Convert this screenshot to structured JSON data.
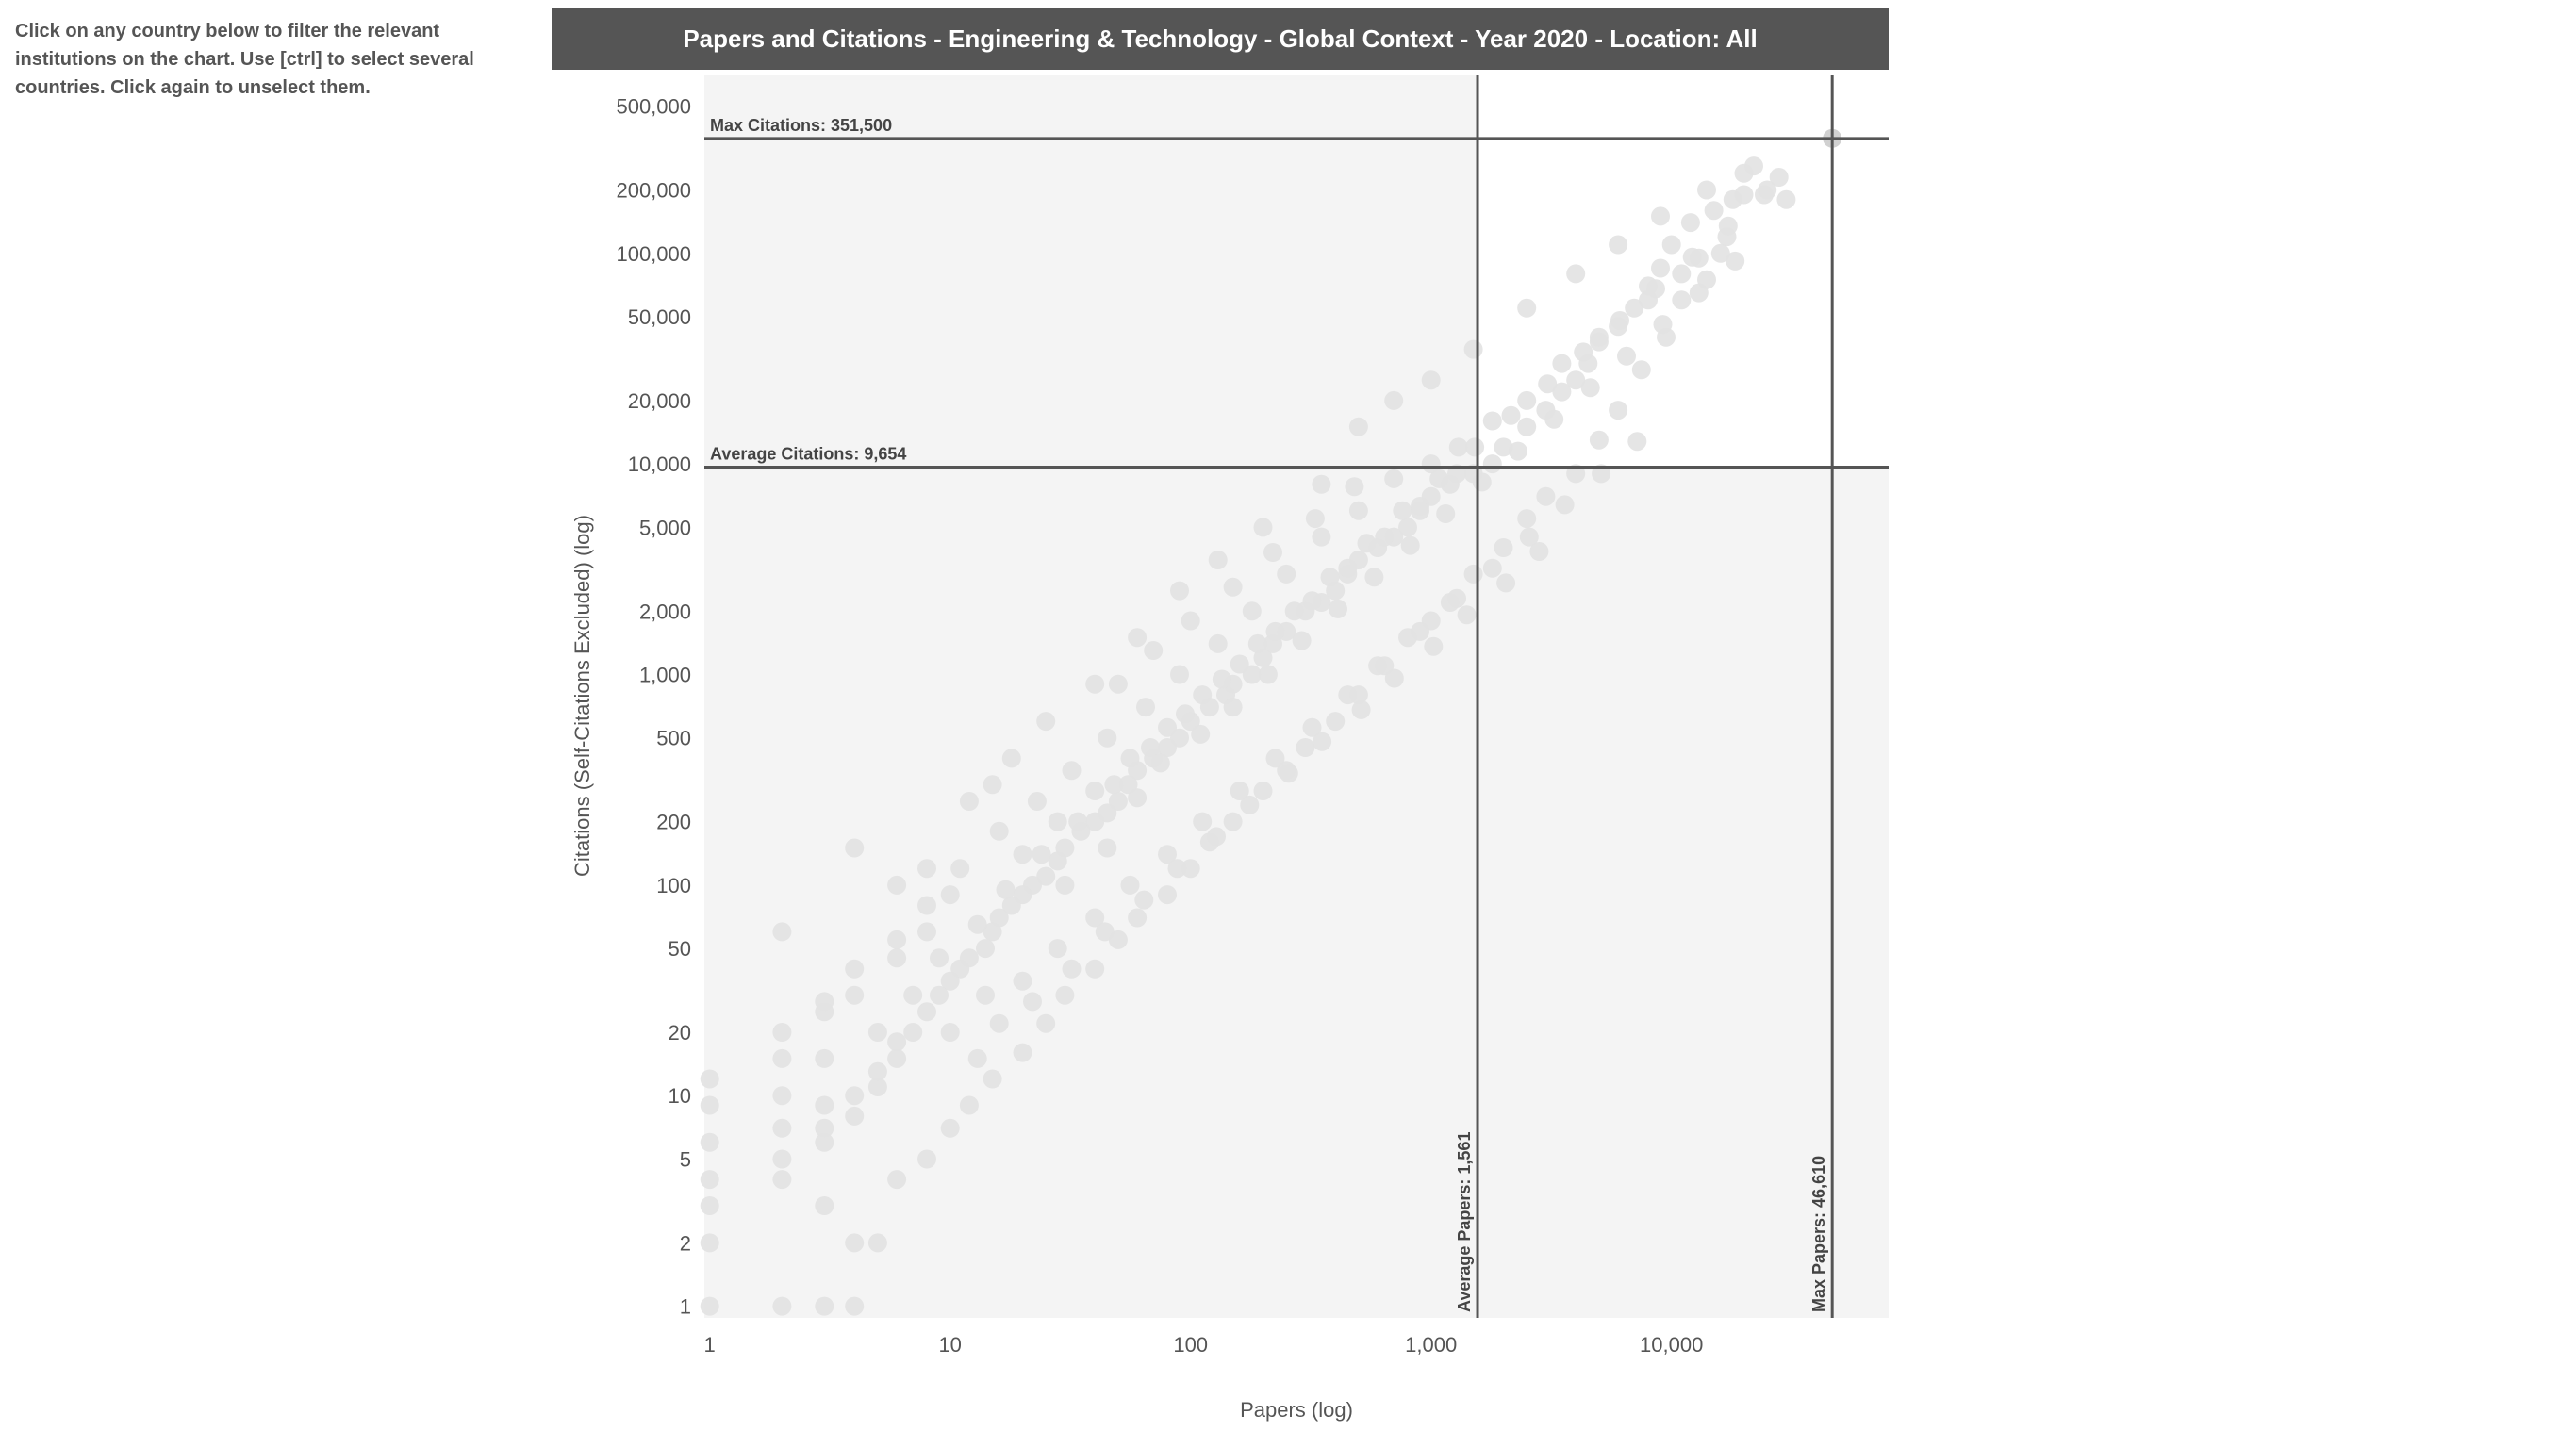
{
  "instructions": "Click on any country below to filter the relevant institutions on the chart. Use [ctrl] to select several countries. Click again to unselect them.",
  "chart_data": {
    "type": "scatter",
    "title": "Papers and Citations - Engineering & Technology - Global Context - Year 2020 - Location: All",
    "xlabel": "Papers (log)",
    "ylabel": "Citations (Self-Citations Excluded) (log)",
    "x_scale": "log",
    "y_scale": "log",
    "xlim": [
      0.95,
      80000
    ],
    "ylim": [
      0.88,
      700000
    ],
    "x_ticks": [
      {
        "value": 1,
        "label": "1"
      },
      {
        "value": 10,
        "label": "10"
      },
      {
        "value": 100,
        "label": "100"
      },
      {
        "value": 1000,
        "label": "1,000"
      },
      {
        "value": 10000,
        "label": "10,000"
      }
    ],
    "y_ticks": [
      {
        "value": 1,
        "label": "1"
      },
      {
        "value": 2,
        "label": "2"
      },
      {
        "value": 5,
        "label": "5"
      },
      {
        "value": 10,
        "label": "10"
      },
      {
        "value": 20,
        "label": "20"
      },
      {
        "value": 50,
        "label": "50"
      },
      {
        "value": 100,
        "label": "100"
      },
      {
        "value": 200,
        "label": "200"
      },
      {
        "value": 500,
        "label": "500"
      },
      {
        "value": 1000,
        "label": "1,000"
      },
      {
        "value": 2000,
        "label": "2,000"
      },
      {
        "value": 5000,
        "label": "5,000"
      },
      {
        "value": 10000,
        "label": "10,000"
      },
      {
        "value": 20000,
        "label": "20,000"
      },
      {
        "value": 50000,
        "label": "50,000"
      },
      {
        "value": 100000,
        "label": "100,000"
      },
      {
        "value": 200000,
        "label": "200,000"
      },
      {
        "value": 500000,
        "label": "500,000"
      }
    ],
    "reference_lines": [
      {
        "axis": "y",
        "value": 351500,
        "label": "Max Citations: 351,500"
      },
      {
        "axis": "y",
        "value": 9654,
        "label": "Average Citations: 9,654"
      },
      {
        "axis": "x",
        "value": 1561,
        "label": "Average Papers: 1,561"
      },
      {
        "axis": "x",
        "value": 46610,
        "label": "Max Papers: 46,610"
      }
    ],
    "point_color": "#e2e2e2",
    "highlight_color": "#cccccc",
    "points": [
      [
        46610,
        351500
      ],
      [
        22000,
        260000
      ],
      [
        20000,
        240000
      ],
      [
        25000,
        200000
      ],
      [
        18000,
        180000
      ],
      [
        15000,
        160000
      ],
      [
        12000,
        140000
      ],
      [
        17000,
        120000
      ],
      [
        10000,
        110000
      ],
      [
        13000,
        95000
      ],
      [
        9000,
        85000
      ],
      [
        14000,
        75000
      ],
      [
        8000,
        70000
      ],
      [
        11000,
        60000
      ],
      [
        7000,
        55000
      ],
      [
        6000,
        45000
      ],
      [
        9500,
        40000
      ],
      [
        5000,
        38000
      ],
      [
        4500,
        30000
      ],
      [
        7500,
        28000
      ],
      [
        4000,
        25000
      ],
      [
        3500,
        22000
      ],
      [
        6000,
        18000
      ],
      [
        3000,
        18000
      ],
      [
        2500,
        15000
      ],
      [
        5000,
        13000
      ],
      [
        2000,
        12000
      ],
      [
        1800,
        10000
      ],
      [
        4000,
        9000
      ],
      [
        1500,
        9000
      ],
      [
        1200,
        8000
      ],
      [
        3000,
        7000
      ],
      [
        1000,
        7000
      ],
      [
        900,
        6000
      ],
      [
        2500,
        5500
      ],
      [
        800,
        5000
      ],
      [
        700,
        4500
      ],
      [
        2000,
        4000
      ],
      [
        600,
        4000
      ],
      [
        500,
        3500
      ],
      [
        1500,
        3000
      ],
      [
        450,
        3000
      ],
      [
        400,
        2500
      ],
      [
        1200,
        2200
      ],
      [
        350,
        2200
      ],
      [
        300,
        2000
      ],
      [
        1000,
        1800
      ],
      [
        250,
        1600
      ],
      [
        800,
        1500
      ],
      [
        220,
        1400
      ],
      [
        200,
        1200
      ],
      [
        600,
        1100
      ],
      [
        180,
        1000
      ],
      [
        150,
        900
      ],
      [
        500,
        800
      ],
      [
        140,
        800
      ],
      [
        120,
        700
      ],
      [
        400,
        600
      ],
      [
        100,
        600
      ],
      [
        90,
        500
      ],
      [
        300,
        450
      ],
      [
        80,
        450
      ],
      [
        70,
        400
      ],
      [
        250,
        350
      ],
      [
        60,
        350
      ],
      [
        55,
        300
      ],
      [
        200,
        280
      ],
      [
        50,
        250
      ],
      [
        45,
        220
      ],
      [
        150,
        200
      ],
      [
        40,
        200
      ],
      [
        35,
        180
      ],
      [
        120,
        160
      ],
      [
        30,
        150
      ],
      [
        28,
        130
      ],
      [
        100,
        120
      ],
      [
        25,
        110
      ],
      [
        22,
        100
      ],
      [
        80,
        90
      ],
      [
        20,
        90
      ],
      [
        18,
        80
      ],
      [
        60,
        70
      ],
      [
        16,
        70
      ],
      [
        15,
        60
      ],
      [
        50,
        55
      ],
      [
        14,
        50
      ],
      [
        12,
        45
      ],
      [
        40,
        40
      ],
      [
        11,
        40
      ],
      [
        10,
        35
      ],
      [
        30,
        30
      ],
      [
        9,
        30
      ],
      [
        8,
        25
      ],
      [
        25,
        22
      ],
      [
        7,
        20
      ],
      [
        6,
        18
      ],
      [
        20,
        16
      ],
      [
        6,
        15
      ],
      [
        5,
        13
      ],
      [
        15,
        12
      ],
      [
        5,
        11
      ],
      [
        4,
        10
      ],
      [
        12,
        9
      ],
      [
        4,
        8
      ],
      [
        3,
        7
      ],
      [
        10,
        7
      ],
      [
        3,
        6
      ],
      [
        2,
        5
      ],
      [
        8,
        5
      ],
      [
        2,
        4
      ],
      [
        1,
        3
      ],
      [
        6,
        4
      ],
      [
        1,
        2
      ],
      [
        5,
        2
      ],
      [
        1,
        1
      ],
      [
        2,
        1
      ],
      [
        3,
        1
      ],
      [
        4,
        1
      ],
      [
        4,
        2
      ],
      [
        3,
        3
      ],
      [
        2,
        10
      ],
      [
        2,
        20
      ],
      [
        3,
        15
      ],
      [
        3,
        25
      ],
      [
        4,
        30
      ],
      [
        2,
        60
      ],
      [
        4,
        150
      ],
      [
        12,
        250
      ],
      [
        8,
        120
      ],
      [
        6,
        100
      ],
      [
        15,
        300
      ],
      [
        18,
        400
      ],
      [
        25,
        600
      ],
      [
        40,
        900
      ],
      [
        60,
        1500
      ],
      [
        90,
        2500
      ],
      [
        130,
        3500
      ],
      [
        200,
        5000
      ],
      [
        350,
        8000
      ],
      [
        500,
        15000
      ],
      [
        700,
        20000
      ],
      [
        1000,
        25000
      ],
      [
        1500,
        35000
      ],
      [
        2500,
        55000
      ],
      [
        4000,
        80000
      ],
      [
        6000,
        110000
      ],
      [
        9000,
        150000
      ],
      [
        14000,
        200000
      ],
      [
        20000,
        190000
      ],
      [
        28000,
        230000
      ],
      [
        30000,
        180000
      ],
      [
        16000,
        100000
      ],
      [
        11000,
        80000
      ],
      [
        8000,
        60000
      ],
      [
        5000,
        40000
      ],
      [
        3500,
        30000
      ],
      [
        2500,
        20000
      ],
      [
        1800,
        16000
      ],
      [
        1300,
        12000
      ],
      [
        1000,
        10000
      ],
      [
        700,
        8500
      ],
      [
        500,
        6000
      ],
      [
        350,
        4500
      ],
      [
        250,
        3000
      ],
      [
        180,
        2000
      ],
      [
        130,
        1400
      ],
      [
        90,
        1000
      ],
      [
        65,
        700
      ],
      [
        45,
        500
      ],
      [
        32,
        350
      ],
      [
        23,
        250
      ],
      [
        16,
        180
      ],
      [
        11,
        120
      ],
      [
        8,
        80
      ],
      [
        6,
        55
      ],
      [
        4,
        40
      ],
      [
        3,
        28
      ],
      [
        2,
        15
      ],
      [
        1,
        6
      ],
      [
        1,
        9
      ],
      [
        1,
        12
      ],
      [
        1,
        4
      ],
      [
        2,
        7
      ],
      [
        3,
        9
      ],
      [
        5,
        20
      ],
      [
        7,
        30
      ],
      [
        9,
        45
      ],
      [
        13,
        65
      ],
      [
        17,
        95
      ],
      [
        24,
        140
      ],
      [
        34,
        200
      ],
      [
        48,
        300
      ],
      [
        68,
        450
      ],
      [
        95,
        650
      ],
      [
        135,
        950
      ],
      [
        190,
        1400
      ],
      [
        270,
        2000
      ],
      [
        380,
        2900
      ],
      [
        540,
        4200
      ],
      [
        760,
        6000
      ],
      [
        1080,
        8500
      ],
      [
        1520,
        12000
      ],
      [
        2150,
        17000
      ],
      [
        3050,
        24000
      ],
      [
        4300,
        34000
      ],
      [
        6100,
        48000
      ],
      [
        8600,
        68000
      ],
      [
        12200,
        96000
      ],
      [
        17200,
        135000
      ],
      [
        24300,
        190000
      ],
      [
        10,
        20
      ],
      [
        14,
        30
      ],
      [
        20,
        35
      ],
      [
        28,
        50
      ],
      [
        40,
        70
      ],
      [
        56,
        100
      ],
      [
        80,
        140
      ],
      [
        112,
        200
      ],
      [
        160,
        280
      ],
      [
        225,
        400
      ],
      [
        320,
        560
      ],
      [
        450,
        800
      ],
      [
        640,
        1100
      ],
      [
        900,
        1600
      ],
      [
        1280,
        2300
      ],
      [
        1800,
        3200
      ],
      [
        2560,
        4500
      ],
      [
        3600,
        6400
      ],
      [
        5100,
        9000
      ],
      [
        7200,
        12800
      ],
      [
        30,
        100
      ],
      [
        45,
        150
      ],
      [
        60,
        260
      ],
      [
        75,
        380
      ],
      [
        110,
        520
      ],
      [
        150,
        700
      ],
      [
        210,
        1000
      ],
      [
        290,
        1450
      ],
      [
        410,
        2050
      ],
      [
        580,
        2900
      ],
      [
        820,
        4100
      ],
      [
        1150,
        5800
      ],
      [
        1630,
        8200
      ],
      [
        2300,
        11500
      ],
      [
        3250,
        16300
      ],
      [
        4600,
        23000
      ],
      [
        6500,
        32500
      ],
      [
        9200,
        46000
      ],
      [
        13000,
        65000
      ],
      [
        18400,
        92000
      ],
      [
        20,
        140
      ],
      [
        28,
        200
      ],
      [
        40,
        280
      ],
      [
        56,
        400
      ],
      [
        80,
        560
      ],
      [
        112,
        800
      ],
      [
        160,
        1120
      ],
      [
        225,
        1600
      ],
      [
        320,
        2240
      ],
      [
        450,
        3200
      ],
      [
        640,
        4500
      ],
      [
        900,
        6300
      ],
      [
        1280,
        9000
      ],
      [
        50,
        900
      ],
      [
        70,
        1300
      ],
      [
        100,
        1800
      ],
      [
        150,
        2600
      ],
      [
        220,
        3800
      ],
      [
        330,
        5500
      ],
      [
        480,
        7800
      ],
      [
        6,
        45
      ],
      [
        8,
        60
      ],
      [
        10,
        90
      ],
      [
        13,
        15
      ],
      [
        16,
        22
      ],
      [
        22,
        28
      ],
      [
        32,
        40
      ],
      [
        44,
        60
      ],
      [
        64,
        85
      ],
      [
        88,
        120
      ],
      [
        128,
        170
      ],
      [
        176,
        240
      ],
      [
        256,
        340
      ],
      [
        352,
        480
      ],
      [
        512,
        680
      ],
      [
        704,
        960
      ],
      [
        1024,
        1360
      ],
      [
        1408,
        1920
      ],
      [
        2048,
        2720
      ],
      [
        2816,
        3840
      ]
    ]
  }
}
